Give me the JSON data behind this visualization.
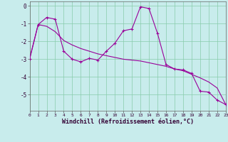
{
  "x": [
    0,
    1,
    2,
    3,
    4,
    5,
    6,
    7,
    8,
    9,
    10,
    11,
    12,
    13,
    14,
    15,
    16,
    17,
    18,
    19,
    20,
    21,
    22,
    23
  ],
  "line1_y": [
    -3.0,
    -1.05,
    -0.65,
    -0.75,
    -2.55,
    -3.0,
    -3.15,
    -2.95,
    -3.05,
    -2.55,
    -2.1,
    -1.4,
    -1.3,
    -0.05,
    -0.15,
    -1.55,
    -3.3,
    -3.55,
    -3.6,
    -3.8,
    -4.8,
    -4.85,
    -5.3,
    -5.55
  ],
  "line2_y": [
    -2.95,
    -1.05,
    -1.15,
    -1.45,
    -1.95,
    -2.2,
    -2.4,
    -2.55,
    -2.7,
    -2.8,
    -2.9,
    -3.0,
    -3.05,
    -3.1,
    -3.2,
    -3.3,
    -3.4,
    -3.55,
    -3.65,
    -3.85,
    -4.05,
    -4.28,
    -4.62,
    -5.55
  ],
  "line_color": "#990099",
  "bg_color": "#c8ecec",
  "grid_color": "#88ccaa",
  "xlabel": "Windchill (Refroidissement éolien,°C)",
  "ylim": [
    -5.9,
    0.25
  ],
  "xlim": [
    0,
    23
  ],
  "yticks": [
    0,
    -1,
    -2,
    -3,
    -4,
    -5
  ],
  "ytick_labels": [
    "0",
    "-1",
    "-2",
    "-3",
    "-4",
    "-5"
  ],
  "xticks": [
    0,
    1,
    2,
    3,
    4,
    5,
    6,
    7,
    8,
    9,
    10,
    11,
    12,
    13,
    14,
    15,
    16,
    17,
    18,
    19,
    20,
    21,
    22,
    23
  ],
  "xtick_labels": [
    "0",
    "1",
    "2",
    "3",
    "4",
    "5",
    "6",
    "7",
    "8",
    "9",
    "10",
    "11",
    "12",
    "13",
    "14",
    "15",
    "16",
    "17",
    "18",
    "19",
    "20",
    "21",
    "22",
    "23"
  ]
}
